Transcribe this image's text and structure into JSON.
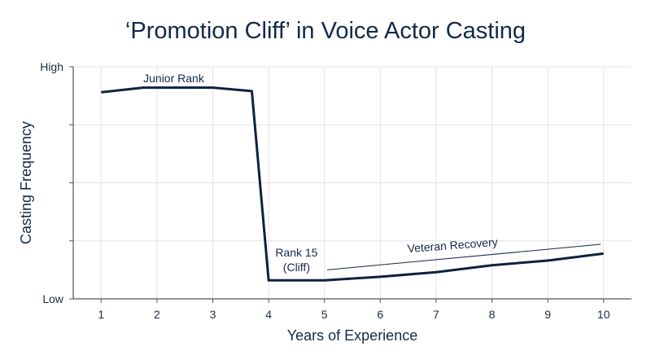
{
  "chart_data": {
    "type": "line",
    "title": "‘Promotion Cliff’ in Voice Actor Casting",
    "xlabel": "Years of Experience",
    "ylabel": "Casting Frequency",
    "x_ticks": [
      "1",
      "2",
      "3",
      "4",
      "5",
      "6",
      "7",
      "8",
      "9",
      "10"
    ],
    "y_ticks": [
      "High",
      "Low"
    ],
    "xlim": [
      0.5,
      10.5
    ],
    "ylim": [
      0,
      100
    ],
    "grid": true,
    "series": [
      {
        "x": [
          1,
          1.75,
          3,
          3.7,
          4,
          5,
          6,
          7,
          8,
          9,
          10
        ],
        "y": [
          89,
          91,
          91,
          89.5,
          8,
          8,
          9.5,
          11.5,
          14.5,
          16.5,
          19.5
        ]
      }
    ],
    "annotations": {
      "junior": "Junior Rank",
      "cliff_line1": "Rank 15",
      "cliff_line2": "(Cliff)",
      "veteran": "Veteran Recovery"
    },
    "colors": {
      "line": "#0d2240",
      "grid": "#e3e3e3",
      "axis": "#555555"
    }
  }
}
